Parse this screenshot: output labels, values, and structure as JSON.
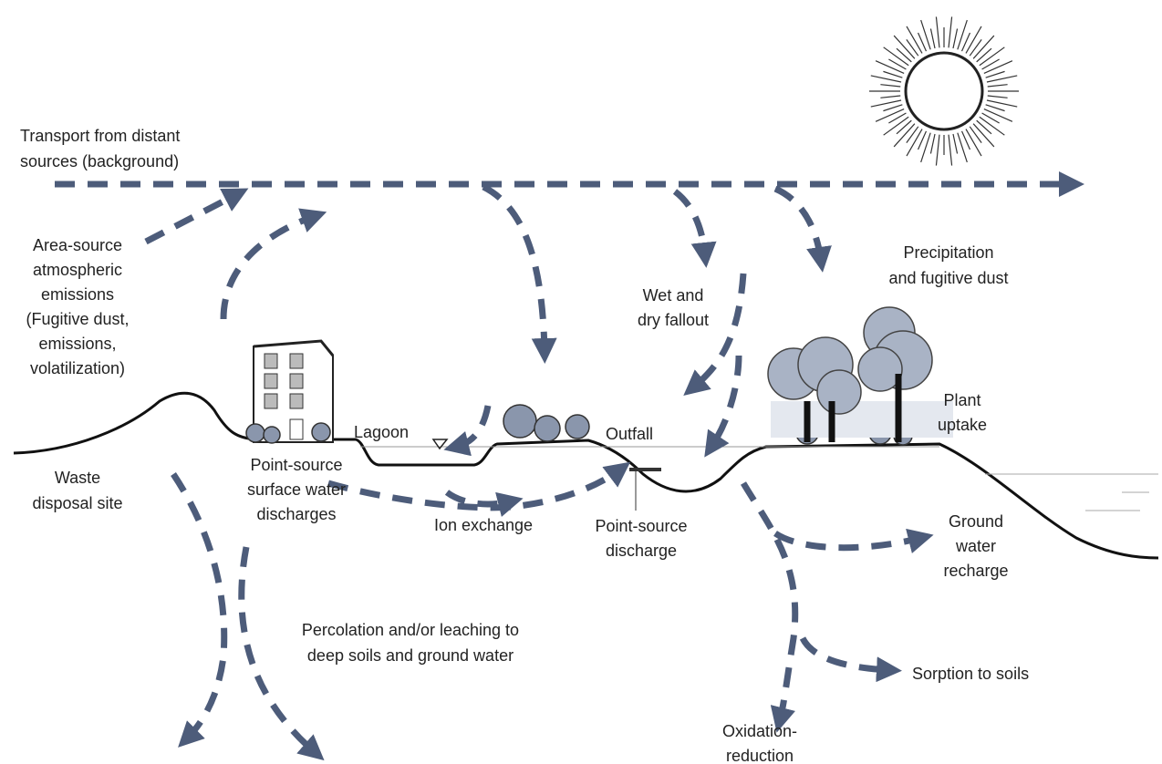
{
  "labels": {
    "transport": [
      "Transport from distant",
      "sources (background)"
    ],
    "area_source": [
      "Area-source",
      "atmospheric",
      "emissions",
      "(Fugitive dust,",
      "emissions,",
      "volatilization)"
    ],
    "precipitation": [
      "Precipitation",
      "and fugitive dust"
    ],
    "fallout": [
      "Wet and",
      "dry fallout"
    ],
    "lagoon": "Lagoon",
    "outfall": "Outfall",
    "plant_uptake": [
      "Plant",
      "uptake"
    ],
    "waste_site": [
      "Waste",
      "disposal site"
    ],
    "surface_discharge": [
      "Point-source",
      "surface water",
      "discharges"
    ],
    "ion_exchange": "Ion exchange",
    "point_discharge": [
      "Point-source",
      "discharge"
    ],
    "ground_water": [
      "Ground",
      "water",
      "recharge"
    ],
    "percolation": [
      "Percolation and/or leaching to",
      "deep soils and ground water"
    ],
    "sorption": "Sorption to soils",
    "oxidation": [
      "Oxidation-",
      "reduction"
    ]
  }
}
